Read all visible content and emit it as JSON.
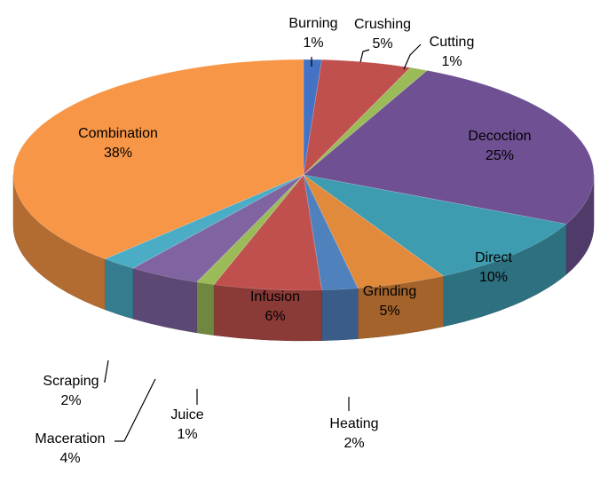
{
  "chart_data": {
    "type": "pie",
    "three_d": true,
    "title": "",
    "legend": "none",
    "slices": [
      {
        "label": "Burning",
        "value": 1,
        "value_text": "1%",
        "color": "#4472C4"
      },
      {
        "label": "Crushing",
        "value": 5,
        "value_text": "5%",
        "color": "#C0504D"
      },
      {
        "label": "Cutting",
        "value": 1,
        "value_text": "1%",
        "color": "#9BBB59"
      },
      {
        "label": "Decoction",
        "value": 25,
        "value_text": "25%",
        "color": "#6F5092"
      },
      {
        "label": "Direct",
        "value": 10,
        "value_text": "10%",
        "color": "#3E9CB0"
      },
      {
        "label": "Grinding",
        "value": 5,
        "value_text": "5%",
        "color": "#E28A3C"
      },
      {
        "label": "Heating",
        "value": 2,
        "value_text": "2%",
        "color": "#4F81BD"
      },
      {
        "label": "Infusion",
        "value": 6,
        "value_text": "6%",
        "color": "#C0504D"
      },
      {
        "label": "Juice",
        "value": 1,
        "value_text": "1%",
        "color": "#9BBB59"
      },
      {
        "label": "Maceration",
        "value": 4,
        "value_text": "4%",
        "color": "#8064A2"
      },
      {
        "label": "Scraping",
        "value": 2,
        "value_text": "2%",
        "color": "#4BACC6"
      },
      {
        "label": "Combination",
        "value": 38,
        "value_text": "38%",
        "color": "#F79646"
      }
    ]
  }
}
